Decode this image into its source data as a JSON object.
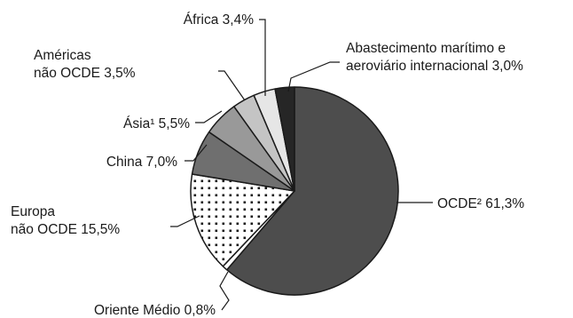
{
  "chart_data": {
    "type": "pie",
    "title": "",
    "colors": {
      "stroke": "#1a1a1a",
      "ocde": "#4d4d4d",
      "oriente_medio": "#ffffff",
      "europa": "#ffffff",
      "china": "#6f6f6f",
      "asia": "#999999",
      "americas": "#c4c4c4",
      "africa": "#e6e6e6",
      "abastecimento": "#262626"
    },
    "slices": [
      {
        "key": "ocde",
        "label": "OCDE² 61,3%",
        "value": 61.3,
        "fill": "#4d4d4d",
        "pattern": "none"
      },
      {
        "key": "oriente_medio",
        "label": "Oriente Médio 0,8%",
        "value": 0.8,
        "fill": "#ffffff",
        "pattern": "none"
      },
      {
        "key": "europa",
        "label_lines": [
          "Europa",
          "não OCDE 15,5%"
        ],
        "value": 15.5,
        "fill": "#ffffff",
        "pattern": "dots"
      },
      {
        "key": "china",
        "label": "China 7,0%",
        "value": 7.0,
        "fill": "#6f6f6f",
        "pattern": "none"
      },
      {
        "key": "asia",
        "label": "Ásia¹ 5,5%",
        "value": 5.5,
        "fill": "#999999",
        "pattern": "none"
      },
      {
        "key": "americas",
        "label_lines": [
          "Américas",
          "não OCDE 3,5%"
        ],
        "value": 3.5,
        "fill": "#c4c4c4",
        "pattern": "none"
      },
      {
        "key": "africa",
        "label": "África 3,4%",
        "value": 3.4,
        "fill": "#e6e6e6",
        "pattern": "none"
      },
      {
        "key": "abastecimento",
        "label_lines": [
          "Abastecimento marítimo e",
          "aeroviário internacional 3,0%"
        ],
        "value": 3.0,
        "fill": "#262626",
        "pattern": "none"
      }
    ]
  }
}
